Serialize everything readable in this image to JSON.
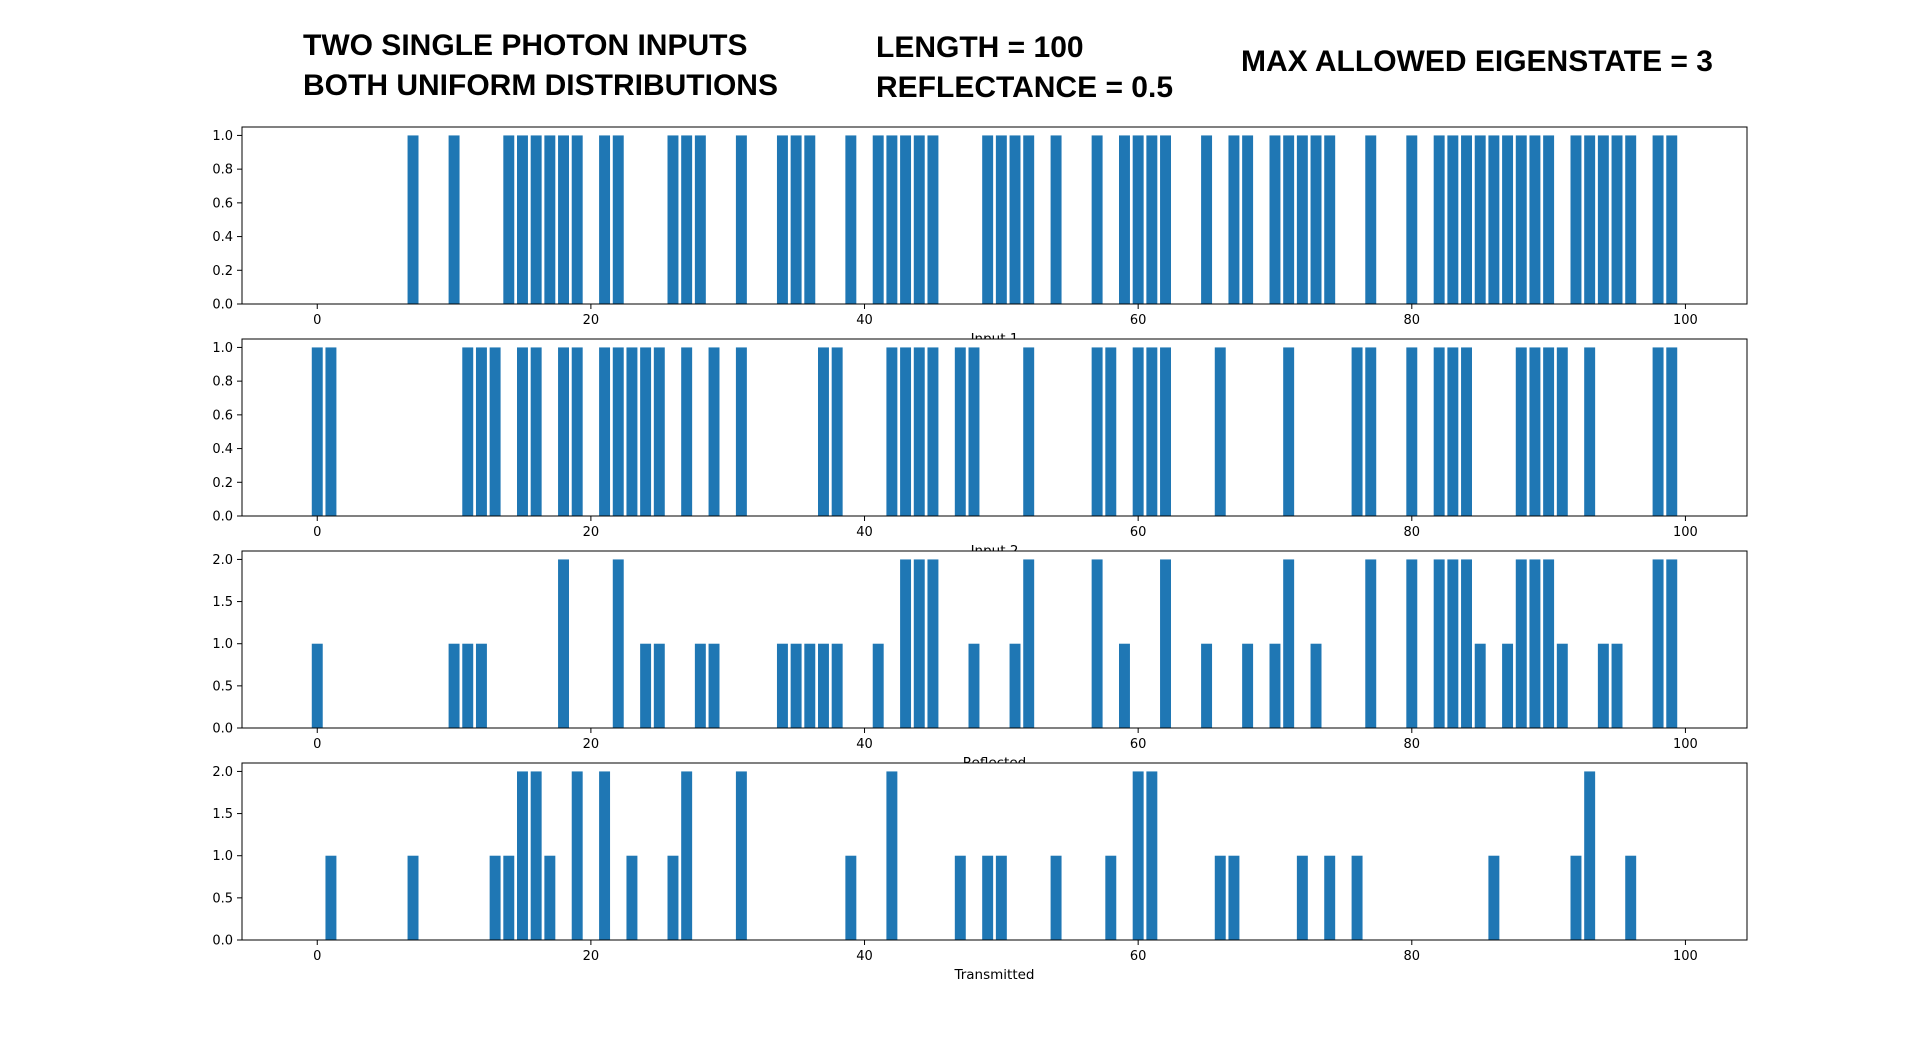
{
  "header": {
    "line1": "TWO SINGLE PHOTON INPUTS",
    "line2": "BOTH UNIFORM DISTRIBUTIONS",
    "length": "LENGTH = 100",
    "reflectance": "REFLECTANCE = 0.5",
    "max_eigenstate": "MAX ALLOWED EIGENSTATE = 3"
  },
  "colors": {
    "bar": "#1f77b4",
    "axis": "#000000"
  },
  "chart_data": [
    {
      "type": "bar",
      "xlabel": "Input 1",
      "xlim": [
        -5.5,
        104.5
      ],
      "ylim": [
        0,
        1.05
      ],
      "xticks": [
        0,
        20,
        40,
        60,
        80,
        100
      ],
      "yticks": [
        0.0,
        0.2,
        0.4,
        0.6,
        0.8,
        1.0
      ],
      "ytick_labels": [
        "0.0",
        "0.2",
        "0.4",
        "0.6",
        "0.8",
        "1.0"
      ],
      "x": [
        7,
        10,
        14,
        15,
        16,
        17,
        18,
        19,
        21,
        22,
        26,
        27,
        28,
        31,
        34,
        35,
        36,
        39,
        41,
        42,
        43,
        44,
        45,
        49,
        50,
        51,
        52,
        54,
        57,
        59,
        60,
        61,
        62,
        65,
        67,
        68,
        70,
        71,
        72,
        73,
        74,
        77,
        80,
        82,
        83,
        84,
        85,
        86,
        87,
        88,
        89,
        90,
        92,
        93,
        94,
        95,
        96,
        98,
        99
      ],
      "values": [
        1,
        1,
        1,
        1,
        1,
        1,
        1,
        1,
        1,
        1,
        1,
        1,
        1,
        1,
        1,
        1,
        1,
        1,
        1,
        1,
        1,
        1,
        1,
        1,
        1,
        1,
        1,
        1,
        1,
        1,
        1,
        1,
        1,
        1,
        1,
        1,
        1,
        1,
        1,
        1,
        1,
        1,
        1,
        1,
        1,
        1,
        1,
        1,
        1,
        1,
        1,
        1,
        1,
        1,
        1,
        1,
        1,
        1,
        1
      ]
    },
    {
      "type": "bar",
      "xlabel": "Input 2",
      "xlim": [
        -5.5,
        104.5
      ],
      "ylim": [
        0,
        1.05
      ],
      "xticks": [
        0,
        20,
        40,
        60,
        80,
        100
      ],
      "yticks": [
        0.0,
        0.2,
        0.4,
        0.6,
        0.8,
        1.0
      ],
      "ytick_labels": [
        "0.0",
        "0.2",
        "0.4",
        "0.6",
        "0.8",
        "1.0"
      ],
      "x": [
        0,
        1,
        11,
        12,
        13,
        15,
        16,
        18,
        19,
        21,
        22,
        23,
        24,
        25,
        27,
        29,
        31,
        37,
        38,
        42,
        43,
        44,
        45,
        47,
        48,
        52,
        57,
        58,
        60,
        61,
        62,
        66,
        71,
        76,
        77,
        80,
        82,
        83,
        84,
        88,
        89,
        90,
        91,
        93,
        98,
        99
      ],
      "values": [
        1,
        1,
        1,
        1,
        1,
        1,
        1,
        1,
        1,
        1,
        1,
        1,
        1,
        1,
        1,
        1,
        1,
        1,
        1,
        1,
        1,
        1,
        1,
        1,
        1,
        1,
        1,
        1,
        1,
        1,
        1,
        1,
        1,
        1,
        1,
        1,
        1,
        1,
        1,
        1,
        1,
        1,
        1,
        1,
        1,
        1
      ]
    },
    {
      "type": "bar",
      "xlabel": "Reflected",
      "xlim": [
        -5.5,
        104.5
      ],
      "ylim": [
        0,
        2.1
      ],
      "xticks": [
        0,
        20,
        40,
        60,
        80,
        100
      ],
      "yticks": [
        0.0,
        0.5,
        1.0,
        1.5,
        2.0
      ],
      "ytick_labels": [
        "0.0",
        "0.5",
        "1.0",
        "1.5",
        "2.0"
      ],
      "x": [
        0,
        10,
        11,
        12,
        18,
        22,
        24,
        25,
        28,
        29,
        34,
        35,
        36,
        37,
        38,
        41,
        43,
        44,
        45,
        48,
        51,
        52,
        57,
        59,
        62,
        65,
        68,
        70,
        71,
        73,
        77,
        80,
        82,
        83,
        84,
        85,
        87,
        88,
        89,
        90,
        91,
        94,
        95,
        98,
        99
      ],
      "values": [
        1,
        1,
        1,
        1,
        2,
        2,
        1,
        1,
        1,
        1,
        1,
        1,
        1,
        1,
        1,
        1,
        2,
        2,
        2,
        1,
        1,
        2,
        2,
        1,
        2,
        1,
        1,
        1,
        2,
        1,
        2,
        2,
        2,
        2,
        2,
        1,
        1,
        2,
        2,
        2,
        1,
        1,
        1,
        2,
        2
      ]
    },
    {
      "type": "bar",
      "xlabel": "Transmitted",
      "xlim": [
        -5.5,
        104.5
      ],
      "ylim": [
        0,
        2.1
      ],
      "xticks": [
        0,
        20,
        40,
        60,
        80,
        100
      ],
      "yticks": [
        0.0,
        0.5,
        1.0,
        1.5,
        2.0
      ],
      "ytick_labels": [
        "0.0",
        "0.5",
        "1.0",
        "1.5",
        "2.0"
      ],
      "x": [
        1,
        7,
        13,
        14,
        15,
        16,
        17,
        19,
        21,
        23,
        26,
        27,
        31,
        39,
        42,
        47,
        49,
        50,
        54,
        58,
        60,
        61,
        66,
        67,
        72,
        74,
        76,
        86,
        92,
        93,
        96
      ],
      "values": [
        1,
        1,
        1,
        1,
        2,
        2,
        1,
        2,
        2,
        1,
        1,
        2,
        2,
        1,
        2,
        1,
        1,
        1,
        1,
        1,
        2,
        2,
        1,
        1,
        1,
        1,
        1,
        1,
        1,
        2,
        1
      ]
    }
  ]
}
